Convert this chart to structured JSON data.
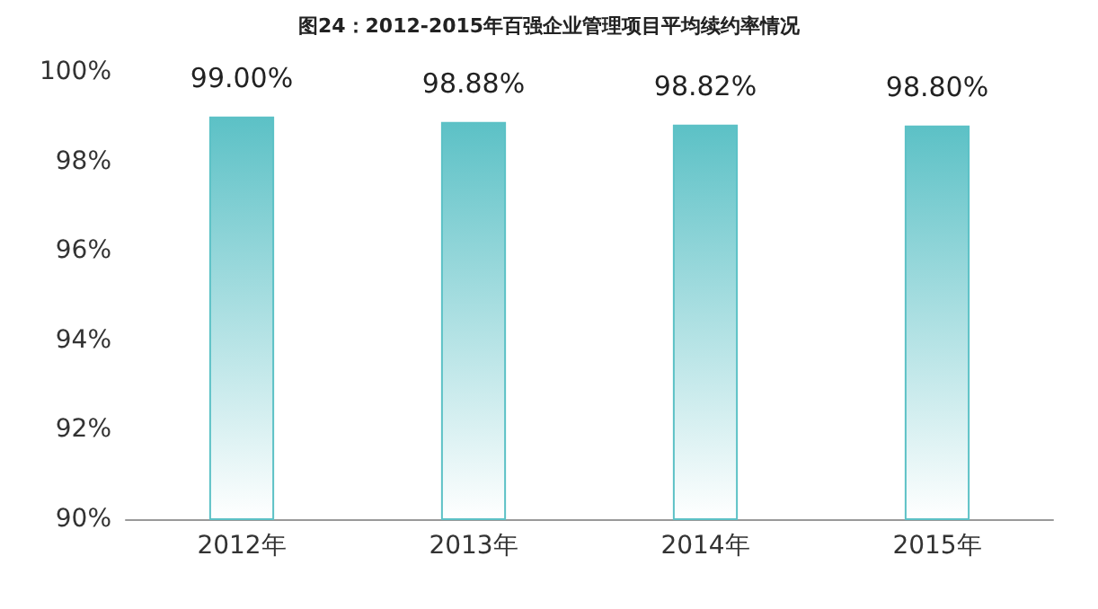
{
  "chart_data": {
    "type": "bar",
    "title": "图24：2012-2015年百强企业管理项目平均续约率情况",
    "categories": [
      "2012年",
      "2013年",
      "2014年",
      "2015年"
    ],
    "values": [
      99.0,
      98.88,
      98.82,
      98.8
    ],
    "value_labels": [
      "99.00%",
      "98.88%",
      "98.82%",
      "98.80%"
    ],
    "color": "#5cc1c6",
    "ylim": [
      90,
      100
    ],
    "yticks": [
      {
        "value": 90,
        "label": "90%"
      },
      {
        "value": 92,
        "label": "92%"
      },
      {
        "value": 94,
        "label": "94%"
      },
      {
        "value": 96,
        "label": "96%"
      },
      {
        "value": 98,
        "label": "98%"
      },
      {
        "value": 100,
        "label": "100%"
      }
    ],
    "grid": false
  }
}
